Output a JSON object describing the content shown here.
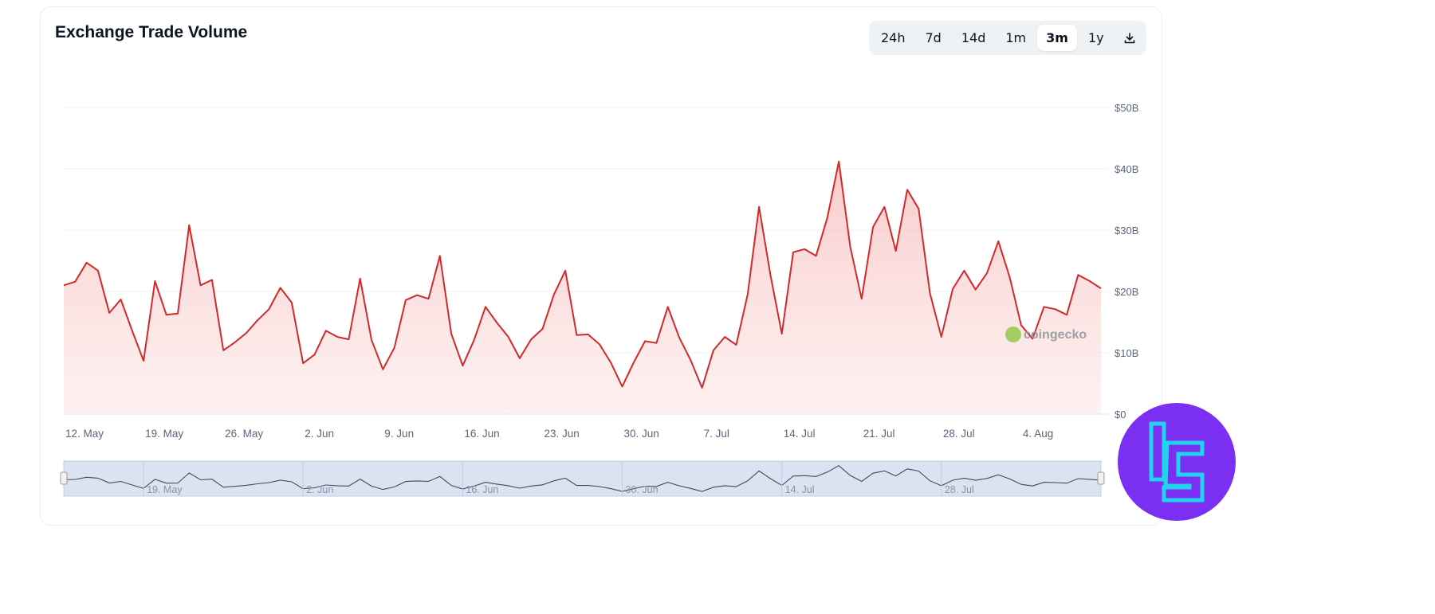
{
  "header": {
    "title": "Exchange Trade Volume"
  },
  "range_buttons": [
    {
      "label": "24h",
      "active": false
    },
    {
      "label": "7d",
      "active": false
    },
    {
      "label": "14d",
      "active": false
    },
    {
      "label": "1m",
      "active": false
    },
    {
      "label": "3m",
      "active": true
    },
    {
      "label": "1y",
      "active": false
    }
  ],
  "download_icon": "download-icon",
  "watermark": {
    "text": "coingecko"
  },
  "colors": {
    "line": "#d12a2a",
    "fill": "#f9c9c9",
    "navigator": "#dbe2f0",
    "accent_logo": "#7a2ff2",
    "logo_glyph": "#22d3ee"
  },
  "chart_data": {
    "type": "area",
    "title": "Exchange Trade Volume",
    "xlabel": "",
    "ylabel": "",
    "ylim": [
      0,
      50
    ],
    "y_unit": "B USD",
    "y_ticks": [
      "$0",
      "$10B",
      "$20B",
      "$30B",
      "$40B",
      "$50B"
    ],
    "x_ticks": [
      "12. May",
      "19. May",
      "26. May",
      "2. Jun",
      "9. Jun",
      "16. Jun",
      "23. Jun",
      "30. Jun",
      "7. Jul",
      "14. Jul",
      "21. Jul",
      "28. Jul",
      "4. Aug"
    ],
    "navigator_ticks": [
      "19. May",
      "2. Jun",
      "16. Jun",
      "30. Jun",
      "14. Jul",
      "28. Jul"
    ],
    "grid": true,
    "legend": "none",
    "x": [
      "12 May",
      "13 May",
      "14 May",
      "15 May",
      "16 May",
      "17 May",
      "18 May",
      "19 May",
      "20 May",
      "21 May",
      "22 May",
      "23 May",
      "24 May",
      "25 May",
      "26 May",
      "27 May",
      "28 May",
      "29 May",
      "30 May",
      "31 May",
      "1 Jun",
      "2 Jun",
      "3 Jun",
      "4 Jun",
      "5 Jun",
      "6 Jun",
      "7 Jun",
      "8 Jun",
      "9 Jun",
      "10 Jun",
      "11 Jun",
      "12 Jun",
      "13 Jun",
      "14 Jun",
      "15 Jun",
      "16 Jun",
      "17 Jun",
      "18 Jun",
      "19 Jun",
      "20 Jun",
      "21 Jun",
      "22 Jun",
      "23 Jun",
      "24 Jun",
      "25 Jun",
      "26 Jun",
      "27 Jun",
      "28 Jun",
      "29 Jun",
      "30 Jun",
      "1 Jul",
      "2 Jul",
      "3 Jul",
      "4 Jul",
      "5 Jul",
      "6 Jul",
      "7 Jul",
      "8 Jul",
      "9 Jul",
      "10 Jul",
      "11 Jul",
      "12 Jul",
      "13 Jul",
      "14 Jul",
      "15 Jul",
      "16 Jul",
      "17 Jul",
      "18 Jul",
      "19 Jul",
      "20 Jul",
      "21 Jul",
      "22 Jul",
      "23 Jul",
      "24 Jul",
      "25 Jul",
      "26 Jul",
      "27 Jul",
      "28 Jul",
      "29 Jul",
      "30 Jul",
      "31 Jul",
      "1 Aug",
      "2 Aug",
      "3 Aug",
      "4 Aug",
      "5 Aug",
      "6 Aug",
      "7 Aug",
      "8 Aug",
      "9 Aug",
      "10 Aug",
      "11 Aug"
    ],
    "values": [
      21.0,
      21.6,
      24.7,
      23.4,
      16.5,
      18.7,
      13.6,
      8.7,
      21.7,
      16.2,
      16.4,
      30.8,
      21.0,
      21.9,
      10.4,
      11.7,
      13.2,
      15.3,
      17.1,
      20.6,
      18.2,
      8.3,
      9.7,
      13.6,
      12.6,
      12.2,
      22.1,
      12.1,
      7.3,
      10.8,
      18.6,
      19.4,
      18.8,
      25.8,
      13.1,
      7.9,
      12.1,
      17.5,
      14.9,
      12.6,
      9.1,
      12.2,
      13.9,
      19.5,
      23.4,
      12.9,
      13.0,
      11.4,
      8.4,
      4.5,
      8.4,
      11.9,
      11.6,
      17.5,
      12.5,
      8.8,
      4.3,
      10.4,
      12.6,
      11.3,
      19.5,
      33.8,
      22.7,
      13.1,
      26.4,
      26.9,
      25.8,
      32.1,
      41.2,
      27.3,
      18.8,
      30.5,
      33.8,
      26.6,
      36.6,
      33.5,
      19.7,
      12.6,
      20.4,
      23.4,
      20.3,
      23.0,
      28.2,
      22.3,
      14.5,
      12.3,
      17.5,
      17.1,
      16.2,
      22.7,
      21.7,
      20.5
    ]
  }
}
